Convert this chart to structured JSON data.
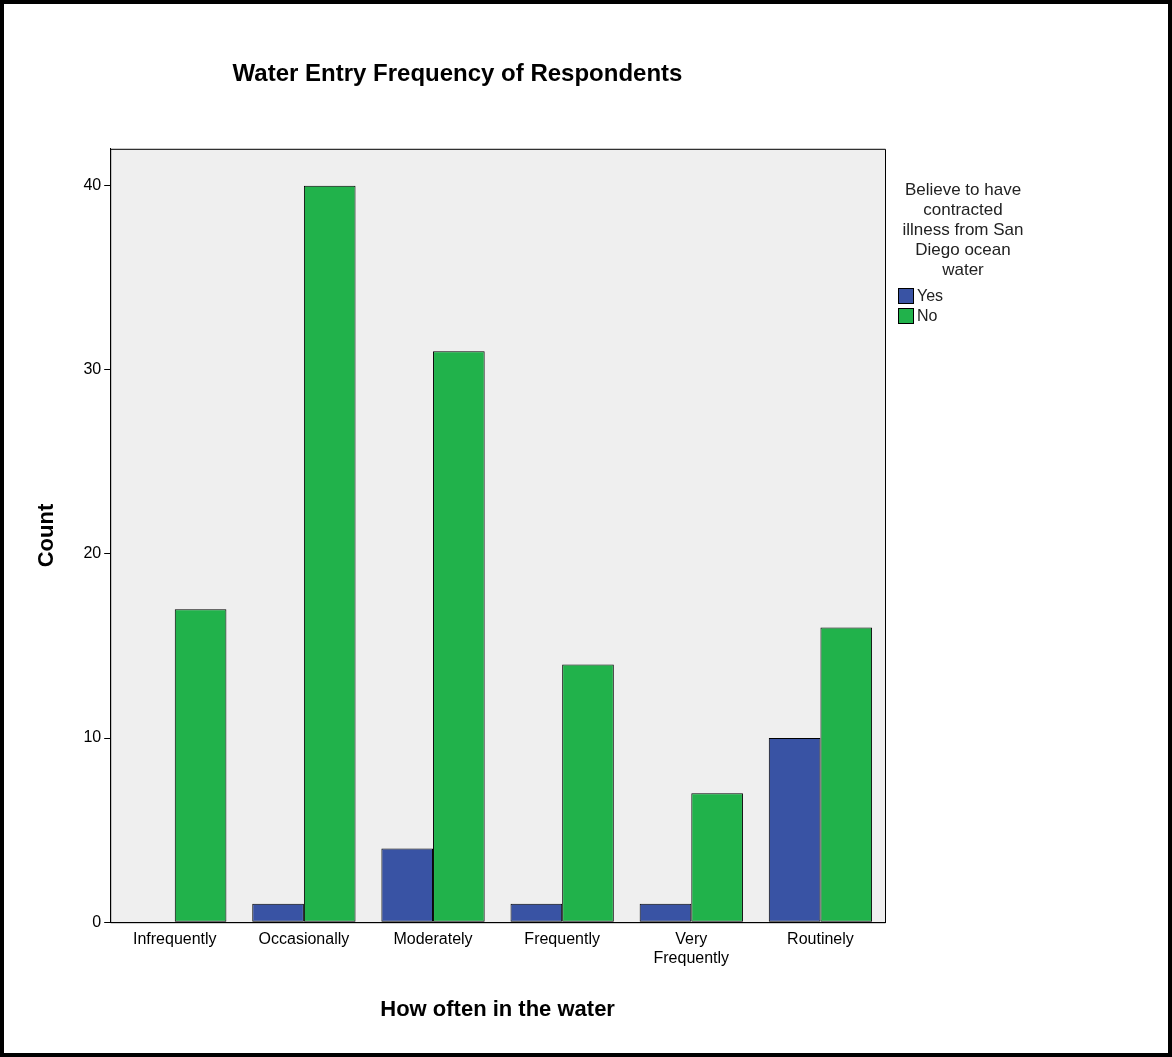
{
  "chart_data": {
    "type": "bar",
    "title": "Water Entry Frequency of Respondents",
    "xlabel": "How often in the water",
    "ylabel": "Count",
    "legend_title": "Believe to have contracted illness from San Diego ocean water",
    "categories": [
      "Infrequently",
      "Occasionally",
      "Moderately",
      "Frequently",
      "Very Frequently",
      "Routinely"
    ],
    "series": [
      {
        "name": "Yes",
        "color": "#3953a4",
        "values": [
          null,
          1,
          4,
          1,
          1,
          10
        ]
      },
      {
        "name": "No",
        "color": "#21b24b",
        "values": [
          17,
          40,
          31,
          14,
          7,
          16
        ]
      }
    ],
    "ylim": [
      0,
      42
    ],
    "yticks": [
      0,
      10,
      20,
      30,
      40
    ],
    "grid": false,
    "legend": "right"
  }
}
